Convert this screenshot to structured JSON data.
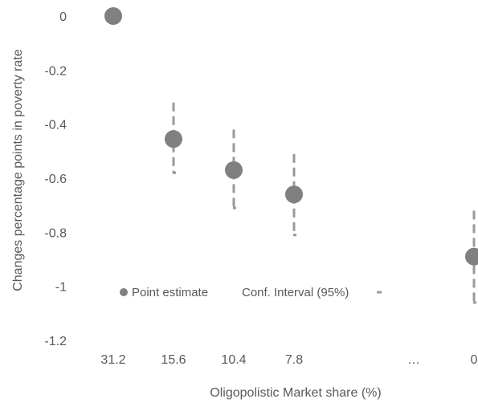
{
  "chart_data": {
    "type": "scatter",
    "title": "",
    "xlabel": "Oligopolistic Market share (%)",
    "ylabel": "Changes percentage points in poverty rate",
    "categories": [
      "31.2",
      "15.6",
      "10.4",
      "7.8",
      "…",
      "0"
    ],
    "ylim": [
      -1.2,
      0
    ],
    "yticks": [
      "0",
      "-0.2",
      "-0.4",
      "-0.6",
      "-0.8",
      "-1",
      "-1.2"
    ],
    "grid": false,
    "legend_position": "bottom-left inside",
    "series": [
      {
        "name": "Point estimate",
        "points": [
          {
            "x": "31.2",
            "y": 0
          },
          {
            "x": "15.6",
            "y": -0.455
          },
          {
            "x": "10.4",
            "y": -0.57
          },
          {
            "x": "7.8",
            "y": -0.66
          },
          {
            "x": "0",
            "y": -0.89
          }
        ]
      },
      {
        "name": "Conf. Interval (95%)",
        "intervals": [
          {
            "x": "31.2",
            "low": 0,
            "high": 0
          },
          {
            "x": "15.6",
            "low": -0.58,
            "high": -0.32
          },
          {
            "x": "10.4",
            "low": -0.71,
            "high": -0.42
          },
          {
            "x": "7.8",
            "low": -0.81,
            "high": -0.51
          },
          {
            "x": "0",
            "low": -1.06,
            "high": -0.72
          }
        ]
      }
    ],
    "colors": {
      "point": "#808080",
      "interval": "#999999",
      "text": "#595959"
    }
  }
}
